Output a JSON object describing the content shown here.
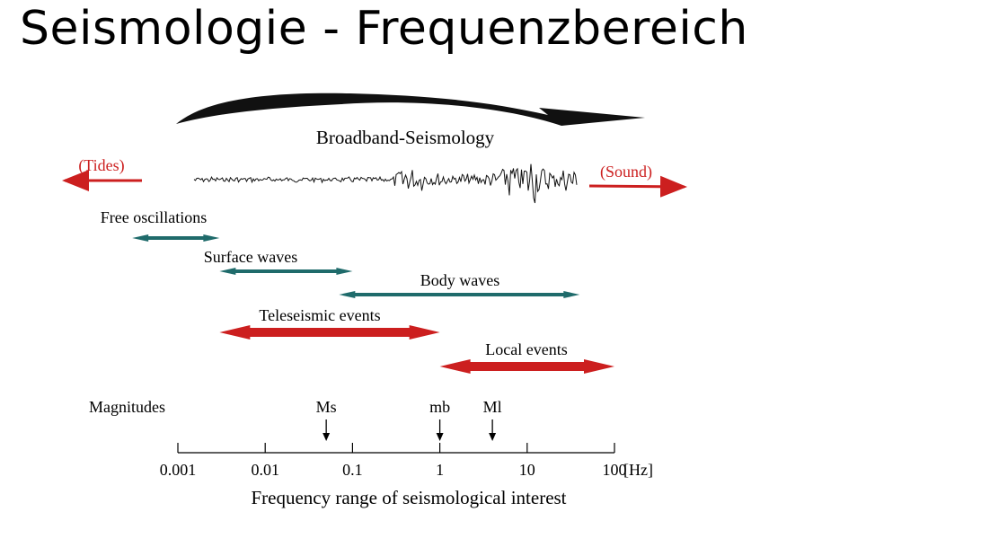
{
  "title": "Seismologie - Frequenzbereich",
  "diagram": {
    "heading": "Broadband-Seismology",
    "tides_label": "(Tides)",
    "sound_label": "(Sound)",
    "bands": [
      {
        "label": "Free oscillations",
        "from": 0.0003,
        "to": 0.003,
        "color": "#1f6b6b"
      },
      {
        "label": "Surface waves",
        "from": 0.003,
        "to": 0.1,
        "color": "#1f6b6b"
      },
      {
        "label": "Body waves",
        "from": 0.07,
        "to": 40,
        "color": "#1f6b6b"
      },
      {
        "label": "Teleseismic events",
        "from": 0.003,
        "to": 1,
        "color": "#cc1f1f"
      },
      {
        "label": "Local events",
        "from": 1,
        "to": 100,
        "color": "#cc1f1f"
      }
    ],
    "magnitudes_label": "Magnitudes",
    "magnitudes": [
      {
        "label": "Ms",
        "freq": 0.05
      },
      {
        "label": "mb",
        "freq": 1
      },
      {
        "label": "Ml",
        "freq": 4
      }
    ],
    "axis": {
      "ticks": [
        "0.001",
        "0.01",
        "0.1",
        "1",
        "10",
        "100"
      ],
      "unit": "[Hz]",
      "label": "Frequency range of seismological interest"
    },
    "colors": {
      "teal": "#1f6b6b",
      "red": "#cc1f1f",
      "text": "#000000"
    }
  }
}
